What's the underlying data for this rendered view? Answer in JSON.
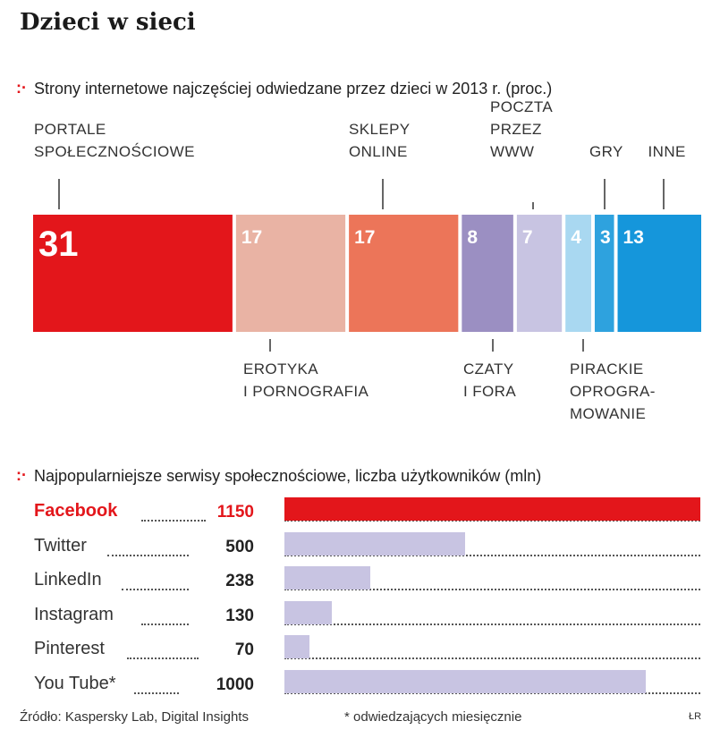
{
  "title": "Dzieci w sieci",
  "section1": {
    "subtitle": "Strony internetowe najczęściej odwiedzane przez dzieci w 2013 r. (proc.)"
  },
  "section2": {
    "subtitle": "Najpopularniejsze serwisy społecznościowe, liczba użytkowników (mln)"
  },
  "colors": {
    "accent": "#e3161b",
    "stack": [
      "#e3161b",
      "#e9b3a4",
      "#ec7559",
      "#9b8fc2",
      "#c8c4e2",
      "#a9d8f1",
      "#2ea2de",
      "#1596db"
    ],
    "bar_muted": "#c8c4e2"
  },
  "chart_data": [
    {
      "type": "bar",
      "subtype": "stacked-100",
      "title": "Strony internetowe najczęściej odwiedzane przez dzieci w 2013 r. (proc.)",
      "unit": "proc.",
      "categories": [
        "PORTALE\nSPOŁECZNOŚCIOWE",
        "EROTYKA\nI PORNOGRAFIA",
        "SKLEPY\nONLINE",
        "CZATY\nI FORA",
        "POCZTA\nPRZEZ\nWWW",
        "PIRACKIE\nOPROGRA-\nMOWANIE",
        "GRY",
        "INNE"
      ],
      "values": [
        31,
        17,
        17,
        8,
        7,
        4,
        3,
        13
      ],
      "label_positions": [
        "top",
        "bottom",
        "top",
        "bottom",
        "top",
        "bottom",
        "top",
        "top"
      ]
    },
    {
      "type": "bar",
      "orientation": "horizontal",
      "title": "Najpopularniejsze serwisy społecznościowe, liczba użytkowników (mln)",
      "unit": "mln",
      "categories": [
        "Facebook",
        "Twitter",
        "LinkedIn",
        "Instagram",
        "Pinterest",
        "You Tube*"
      ],
      "values": [
        1150,
        500,
        238,
        130,
        70,
        1000
      ],
      "highlight": "Facebook",
      "xlim": [
        0,
        1150
      ]
    }
  ],
  "footer": {
    "source": "Źródło: Kaspersky Lab, Digital Insights",
    "note": "* odwiedzających miesięcznie",
    "credit": "ŁR"
  }
}
